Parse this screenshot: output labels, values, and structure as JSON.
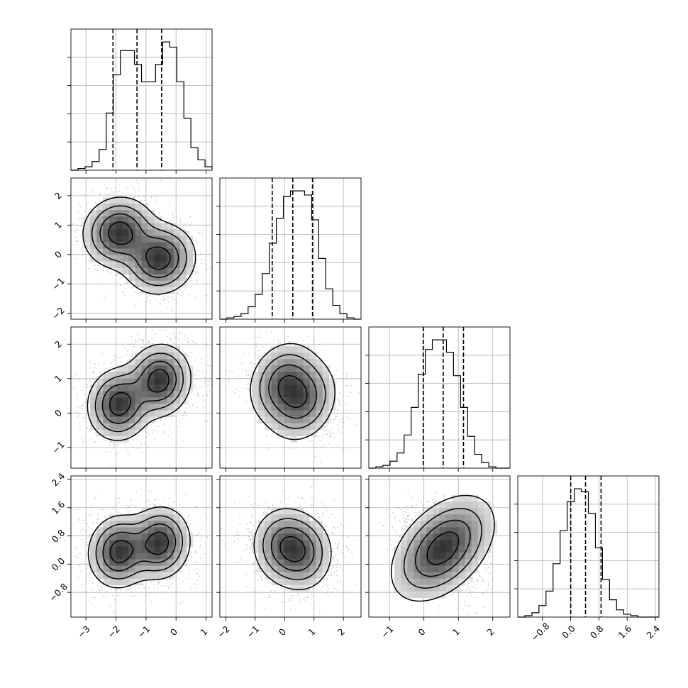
{
  "chart_data": {
    "type": "corner",
    "title": "",
    "n_params": 4,
    "grid": true,
    "colors": {
      "line": "#000000",
      "grid": "#b0b0b0",
      "density": "#1a1a1a"
    },
    "params": [
      {
        "index": 0,
        "range": [
          -3.5,
          1.2
        ],
        "ticks": [
          -3,
          -2,
          -1,
          0,
          1
        ],
        "tick_labels": [
          "−3",
          "−2",
          "−1",
          "0",
          "1"
        ],
        "quantiles": [
          -2.1,
          -1.3,
          -0.48
        ]
      },
      {
        "index": 1,
        "range": [
          -2.2,
          2.6
        ],
        "ticks": [
          -2,
          -1,
          0,
          1,
          2
        ],
        "tick_labels": [
          "−2",
          "−1",
          "0",
          "1",
          "2"
        ],
        "quantiles": [
          -0.42,
          0.28,
          0.95
        ]
      },
      {
        "index": 2,
        "range": [
          -1.6,
          2.5
        ],
        "ticks": [
          -1,
          0,
          1,
          2
        ],
        "tick_labels": [
          "−1",
          "0",
          "1",
          "2"
        ],
        "quantiles": [
          -0.02,
          0.56,
          1.15
        ]
      },
      {
        "index": 3,
        "range": [
          -1.5,
          2.5
        ],
        "ticks": [
          -0.8,
          0.0,
          0.8,
          1.6,
          2.4
        ],
        "tick_labels": [
          "−0.8",
          "0.0",
          "0.8",
          "1.6",
          "2.4"
        ],
        "quantiles": [
          0.0,
          0.42,
          0.86
        ]
      }
    ],
    "histograms": [
      {
        "param": 0,
        "edges_start": -3.5,
        "bin_width": 0.235,
        "counts": [
          0,
          1,
          2,
          5,
          12,
          33,
          55,
          69,
          69,
          61,
          51,
          51,
          61,
          74,
          71,
          51,
          30,
          13,
          6,
          2
        ]
      },
      {
        "param": 1,
        "edges_start": -2.2,
        "bin_width": 0.24,
        "counts": [
          0,
          1,
          2,
          4,
          9,
          18,
          33,
          55,
          73,
          89,
          93,
          93,
          90,
          72,
          44,
          22,
          10,
          4,
          1,
          0
        ]
      },
      {
        "param": 2,
        "edges_start": -1.6,
        "bin_width": 0.205,
        "counts": [
          0,
          1,
          2,
          5,
          11,
          24,
          44,
          68,
          86,
          93,
          93,
          84,
          67,
          44,
          23,
          10,
          4,
          1,
          0,
          0
        ]
      },
      {
        "param": 3,
        "edges_start": -1.5,
        "bin_width": 0.2,
        "counts": [
          0,
          1,
          3,
          8,
          18,
          37,
          60,
          80,
          89,
          87,
          72,
          48,
          26,
          12,
          5,
          2,
          1,
          0,
          0,
          0
        ]
      }
    ],
    "pairs": [
      {
        "x_param": 0,
        "y_param": 1,
        "sigma": 0.26,
        "correlation": 0.05,
        "modes": [
          {
            "x": -1.9,
            "y": 0.75,
            "w": 1.0
          },
          {
            "x": -0.55,
            "y": -0.15,
            "w": 1.0
          }
        ]
      },
      {
        "x_param": 0,
        "y_param": 2,
        "sigma": 0.26,
        "correlation": 0.05,
        "modes": [
          {
            "x": -1.9,
            "y": 0.25,
            "w": 1.0
          },
          {
            "x": -0.55,
            "y": 0.95,
            "w": 1.0
          }
        ]
      },
      {
        "x_param": 1,
        "y_param": 2,
        "sigma": 0.3,
        "correlation": 0.2,
        "modes": [
          {
            "x": -0.05,
            "y": 0.9,
            "w": 1.0
          },
          {
            "x": 0.6,
            "y": 0.35,
            "w": 1.0
          }
        ]
      },
      {
        "x_param": 0,
        "y_param": 3,
        "sigma": 0.26,
        "correlation": 0.05,
        "modes": [
          {
            "x": -1.9,
            "y": 0.35,
            "w": 1.0
          },
          {
            "x": -0.55,
            "y": 0.6,
            "w": 1.0
          }
        ]
      },
      {
        "x_param": 1,
        "y_param": 3,
        "sigma": 0.28,
        "correlation": 0.0,
        "modes": [
          {
            "x": -0.05,
            "y": 0.55,
            "w": 1.0
          },
          {
            "x": 0.6,
            "y": 0.3,
            "w": 1.0
          }
        ]
      },
      {
        "x_param": 2,
        "y_param": 3,
        "sigma": 0.38,
        "correlation": 0.45,
        "modes": [
          {
            "x": 0.55,
            "y": 0.45,
            "w": 1.0
          }
        ]
      }
    ],
    "contour_levels": [
      0.12,
      0.3,
      0.55,
      0.82
    ]
  }
}
